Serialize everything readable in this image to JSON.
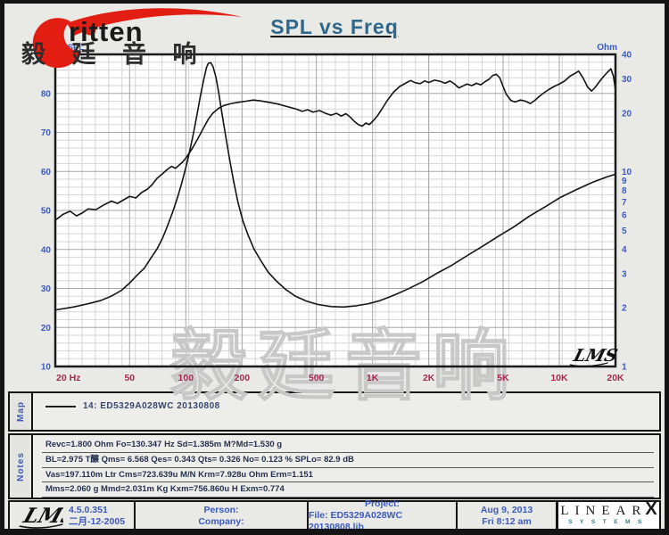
{
  "brand": {
    "name": "ritten",
    "chinese": "毅 廷 音 响"
  },
  "header": {
    "title": "SPL vs Freq"
  },
  "colors": {
    "title": "#2e688c",
    "axis_blue": "#3b5bbf",
    "freq_red": "#a12a52",
    "grid_minor": "#d6d6d6",
    "grid_major": "#a6a6a6",
    "curve": "#141414",
    "plot_border": "#1b1b1b",
    "watermark": "#c8c8c8"
  },
  "chart_data": {
    "type": "line",
    "title": "SPL vs Freq",
    "x_axis": {
      "scale": "log",
      "min": 20,
      "max": 20000,
      "ticks": [
        {
          "f": 20,
          "label": "20 Hz"
        },
        {
          "f": 50,
          "label": "50"
        },
        {
          "f": 100,
          "label": "100"
        },
        {
          "f": 200,
          "label": "200"
        },
        {
          "f": 500,
          "label": "500"
        },
        {
          "f": 1000,
          "label": "1K"
        },
        {
          "f": 2000,
          "label": "2K"
        },
        {
          "f": 5000,
          "label": "5K"
        },
        {
          "f": 10000,
          "label": "10K"
        },
        {
          "f": 20000,
          "label": "20K"
        }
      ]
    },
    "y_left": {
      "label": "dBSPL",
      "scale": "linear",
      "min": 10,
      "max": 90,
      "major_step": 10,
      "minor_step": 2,
      "ticks": [
        90,
        80,
        70,
        60,
        50,
        40,
        30,
        20,
        10
      ]
    },
    "y_right": {
      "label": "Ohm",
      "scale": "log",
      "min": 1,
      "max": 40,
      "ticks": [
        40,
        30,
        20,
        10,
        9,
        8,
        7,
        6,
        5,
        4,
        3,
        2,
        1
      ]
    },
    "watermark": "毅廷音响",
    "corner_signature": "LMS",
    "series": [
      {
        "name": "SPL (dB)",
        "axis": "left",
        "points": [
          [
            20,
            47.5
          ],
          [
            22,
            49.0
          ],
          [
            24,
            49.8
          ],
          [
            26,
            48.6
          ],
          [
            28,
            49.4
          ],
          [
            30,
            50.4
          ],
          [
            33,
            50.2
          ],
          [
            36,
            51.3
          ],
          [
            40,
            52.4
          ],
          [
            43,
            51.8
          ],
          [
            46,
            52.6
          ],
          [
            50,
            53.6
          ],
          [
            54,
            53.2
          ],
          [
            58,
            54.6
          ],
          [
            62,
            55.4
          ],
          [
            66,
            56.6
          ],
          [
            70,
            58.2
          ],
          [
            75,
            59.4
          ],
          [
            80,
            60.6
          ],
          [
            84,
            61.3
          ],
          [
            88,
            60.8
          ],
          [
            92,
            61.6
          ],
          [
            96,
            62.4
          ],
          [
            100,
            63.4
          ],
          [
            108,
            65.8
          ],
          [
            116,
            68.4
          ],
          [
            124,
            71.0
          ],
          [
            132,
            73.4
          ],
          [
            140,
            75.0
          ],
          [
            150,
            76.2
          ],
          [
            160,
            76.9
          ],
          [
            175,
            77.4
          ],
          [
            190,
            77.7
          ],
          [
            210,
            78.0
          ],
          [
            230,
            78.3
          ],
          [
            250,
            78.1
          ],
          [
            280,
            77.7
          ],
          [
            310,
            77.3
          ],
          [
            350,
            76.6
          ],
          [
            390,
            76.0
          ],
          [
            420,
            75.4
          ],
          [
            450,
            75.8
          ],
          [
            480,
            75.2
          ],
          [
            520,
            75.6
          ],
          [
            560,
            74.9
          ],
          [
            600,
            74.4
          ],
          [
            640,
            74.9
          ],
          [
            680,
            74.2
          ],
          [
            720,
            74.8
          ],
          [
            760,
            73.9
          ],
          [
            800,
            72.8
          ],
          [
            840,
            72.0
          ],
          [
            880,
            71.6
          ],
          [
            920,
            72.4
          ],
          [
            960,
            72.0
          ],
          [
            1000,
            72.8
          ],
          [
            1060,
            74.2
          ],
          [
            1130,
            76.2
          ],
          [
            1200,
            78.2
          ],
          [
            1300,
            80.4
          ],
          [
            1400,
            81.8
          ],
          [
            1500,
            82.6
          ],
          [
            1600,
            83.3
          ],
          [
            1700,
            82.7
          ],
          [
            1800,
            82.5
          ],
          [
            1900,
            83.2
          ],
          [
            2000,
            82.8
          ],
          [
            2150,
            83.4
          ],
          [
            2300,
            83.1
          ],
          [
            2450,
            82.6
          ],
          [
            2600,
            83.2
          ],
          [
            2750,
            82.4
          ],
          [
            2900,
            81.4
          ],
          [
            3050,
            81.9
          ],
          [
            3200,
            82.4
          ],
          [
            3400,
            82.0
          ],
          [
            3600,
            82.6
          ],
          [
            3800,
            82.2
          ],
          [
            4000,
            83.0
          ],
          [
            4200,
            83.6
          ],
          [
            4400,
            84.6
          ],
          [
            4600,
            84.9
          ],
          [
            4800,
            84.0
          ],
          [
            5000,
            81.8
          ],
          [
            5200,
            79.8
          ],
          [
            5500,
            78.2
          ],
          [
            5800,
            77.8
          ],
          [
            6200,
            78.3
          ],
          [
            6600,
            78.0
          ],
          [
            7000,
            77.4
          ],
          [
            7400,
            78.2
          ],
          [
            7800,
            79.2
          ],
          [
            8300,
            80.2
          ],
          [
            8800,
            81.0
          ],
          [
            9400,
            81.8
          ],
          [
            10000,
            82.4
          ],
          [
            10700,
            83.2
          ],
          [
            11400,
            84.4
          ],
          [
            12000,
            85.0
          ],
          [
            12700,
            85.7
          ],
          [
            13400,
            84.0
          ],
          [
            14200,
            81.6
          ],
          [
            14900,
            80.6
          ],
          [
            15600,
            81.6
          ],
          [
            16400,
            83.0
          ],
          [
            17300,
            84.4
          ],
          [
            18100,
            85.4
          ],
          [
            18900,
            86.3
          ],
          [
            19500,
            84.4
          ],
          [
            20000,
            80.8
          ]
        ]
      },
      {
        "name": "Impedance (Ohm)",
        "axis": "right",
        "points": [
          [
            20,
            1.95
          ],
          [
            25,
            2.02
          ],
          [
            30,
            2.1
          ],
          [
            35,
            2.18
          ],
          [
            40,
            2.3
          ],
          [
            45,
            2.45
          ],
          [
            50,
            2.68
          ],
          [
            55,
            2.95
          ],
          [
            60,
            3.2
          ],
          [
            65,
            3.6
          ],
          [
            70,
            4.0
          ],
          [
            75,
            4.55
          ],
          [
            80,
            5.3
          ],
          [
            85,
            6.2
          ],
          [
            90,
            7.3
          ],
          [
            95,
            8.7
          ],
          [
            100,
            10.5
          ],
          [
            105,
            12.8
          ],
          [
            110,
            15.8
          ],
          [
            115,
            19.8
          ],
          [
            120,
            24.8
          ],
          [
            125,
            30.0
          ],
          [
            129,
            34.2
          ],
          [
            132,
            36.0
          ],
          [
            136,
            36.3
          ],
          [
            140,
            34.5
          ],
          [
            145,
            30.5
          ],
          [
            150,
            25.5
          ],
          [
            156,
            20.0
          ],
          [
            163,
            15.5
          ],
          [
            171,
            11.8
          ],
          [
            180,
            9.0
          ],
          [
            190,
            7.0
          ],
          [
            202,
            5.6
          ],
          [
            216,
            4.7
          ],
          [
            232,
            4.0
          ],
          [
            252,
            3.5
          ],
          [
            276,
            3.05
          ],
          [
            305,
            2.75
          ],
          [
            340,
            2.5
          ],
          [
            385,
            2.3
          ],
          [
            440,
            2.17
          ],
          [
            510,
            2.08
          ],
          [
            600,
            2.03
          ],
          [
            700,
            2.02
          ],
          [
            820,
            2.05
          ],
          [
            950,
            2.1
          ],
          [
            1100,
            2.18
          ],
          [
            1300,
            2.32
          ],
          [
            1550,
            2.5
          ],
          [
            1850,
            2.72
          ],
          [
            2200,
            3.0
          ],
          [
            2650,
            3.3
          ],
          [
            3200,
            3.7
          ],
          [
            3900,
            4.15
          ],
          [
            4700,
            4.65
          ],
          [
            5700,
            5.2
          ],
          [
            6900,
            5.9
          ],
          [
            8400,
            6.6
          ],
          [
            10200,
            7.4
          ],
          [
            12400,
            8.1
          ],
          [
            15000,
            8.8
          ],
          [
            18000,
            9.4
          ],
          [
            20000,
            9.7
          ]
        ]
      }
    ]
  },
  "map": {
    "label": "Map",
    "legend": "14: ED5329A028WC   20130808"
  },
  "notes": {
    "label": "Notes",
    "lines": [
      "Revc=1.800 Ohm  Fo=130.347 Hz  Sd=1.385m M?Md=1.530 g",
      "BL=2.975 T醸  Qms= 6.568  Qes= 0.343  Qts= 0.326  No= 0.123 %  SPLo= 82.9 dB",
      "Vas=197.110m Ltr  Cms=723.639u M/N  Krm=7.928u Ohm  Erm=1.151",
      "Mms=2.060 g  Mmd=2.031m Kg  Kxm=756.860u H  Exm=0.774"
    ]
  },
  "footer": {
    "lms_logo": "LMS",
    "version": "4.5.0.351",
    "version_date": "二月-12-2005",
    "person_label": "Person:",
    "company_label": "Company:",
    "project_label": "Project:",
    "file_label": "File: ED5329A028WC  20130808.lib",
    "date": "Aug  9, 2013",
    "time": "Fri  8:12 am",
    "linearx": {
      "letters": "LINEAR",
      "x": "X",
      "systems": "SYSTEMS"
    }
  }
}
